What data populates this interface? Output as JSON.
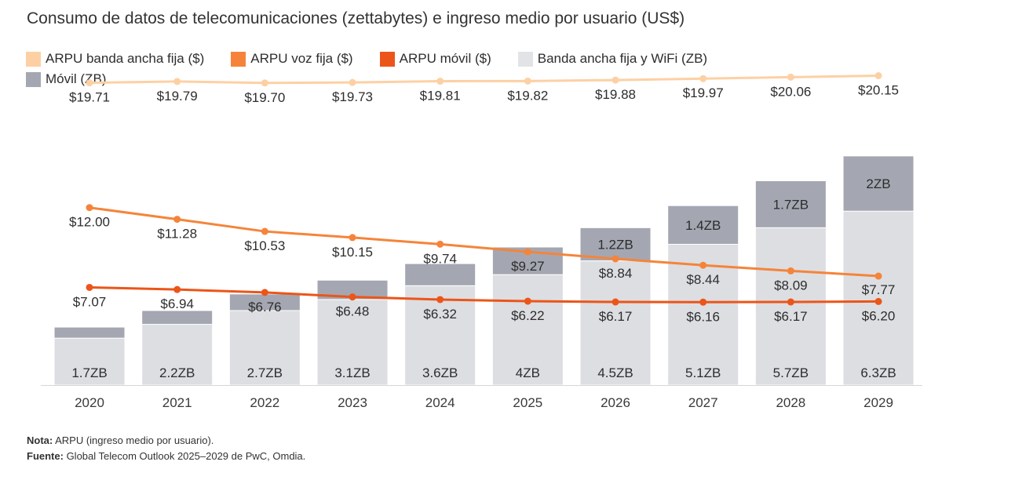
{
  "chart_data": {
    "type": "bar",
    "title": "Consumo de datos de telecomunicaciones (zettabytes) e ingreso medio por usuario (US$)",
    "categories": [
      "2020",
      "2021",
      "2022",
      "2023",
      "2024",
      "2025",
      "2026",
      "2027",
      "2028",
      "2029"
    ],
    "stacked": true,
    "bar_series": [
      {
        "name": "Banda ancha fija y WiFi (ZB)",
        "color": "#dcdee2",
        "values": [
          1.7,
          2.2,
          2.7,
          3.1,
          3.6,
          4.0,
          4.5,
          5.1,
          5.7,
          6.3
        ],
        "labels": [
          "1.7ZB",
          "2.2ZB",
          "2.7ZB",
          "3.1ZB",
          "3.6ZB",
          "4ZB",
          "4.5ZB",
          "5.1ZB",
          "5.7ZB",
          "6.3ZB"
        ]
      },
      {
        "name": "Móvil (ZB)",
        "color": "#a4a7b1",
        "values": [
          0.4,
          0.5,
          0.6,
          0.7,
          0.8,
          1.0,
          1.2,
          1.4,
          1.7,
          2.0
        ],
        "labels": [
          "",
          "",
          "",
          "",
          "",
          "",
          "1.2ZB",
          "1.4ZB",
          "1.7ZB",
          "2ZB"
        ]
      }
    ],
    "line_series": [
      {
        "name": "ARPU banda ancha fija ($)",
        "color": "#fdd0a4",
        "values": [
          19.71,
          19.79,
          19.7,
          19.73,
          19.81,
          19.82,
          19.88,
          19.97,
          20.06,
          20.15
        ],
        "labels": [
          "$19.71",
          "$19.79",
          "$19.70",
          "$19.73",
          "$19.81",
          "$19.82",
          "$19.88",
          "$19.97",
          "$20.06",
          "$20.15"
        ]
      },
      {
        "name": "ARPU voz fija ($)",
        "color": "#f5843a",
        "values": [
          12.0,
          11.28,
          10.53,
          10.15,
          9.74,
          9.27,
          8.84,
          8.44,
          8.09,
          7.77
        ],
        "labels": [
          "$12.00",
          "$11.28",
          "$10.53",
          "$10.15",
          "$9.74",
          "$9.27",
          "$8.84",
          "$8.44",
          "$8.09",
          "$7.77"
        ]
      },
      {
        "name": "ARPU móvil ($)",
        "color": "#ec5519",
        "values": [
          7.07,
          6.94,
          6.76,
          6.48,
          6.32,
          6.22,
          6.17,
          6.16,
          6.17,
          6.2
        ],
        "labels": [
          "$7.07",
          "$6.94",
          "$6.76",
          "$6.48",
          "$6.32",
          "$6.22",
          "$6.17",
          "$6.16",
          "$6.17",
          "$6.20"
        ]
      }
    ],
    "legend": {
      "position": "top-left",
      "row1": [
        {
          "label": "ARPU banda ancha fija ($)",
          "color": "#fdd0a4"
        },
        {
          "label": "ARPU voz fija ($)",
          "color": "#f5843a"
        },
        {
          "label": "ARPU móvil ($)",
          "color": "#ec5519"
        },
        {
          "label": "Banda ancha fija y WiFi (ZB)",
          "color": "#e2e3e6"
        }
      ],
      "row2": [
        {
          "label": "Móvil (ZB)",
          "color": "#a4a7b1"
        }
      ]
    },
    "grid": false
  },
  "notes": {
    "note_label": "Nota:",
    "note_text": " ARPU (ingreso medio por usuario).",
    "source_label": "Fuente:",
    "source_text": " Global Telecom Outlook 2025–2029 de PwC, Omdia."
  }
}
